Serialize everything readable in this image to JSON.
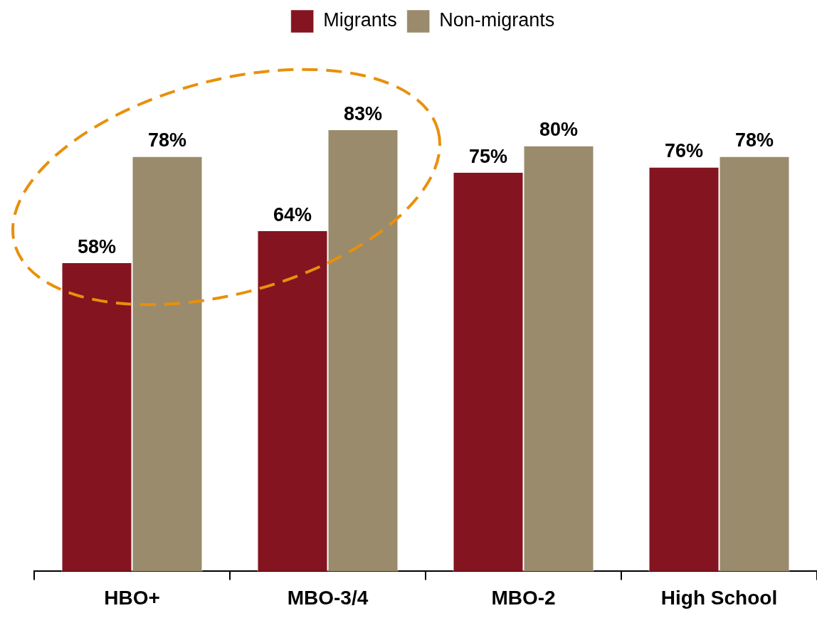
{
  "chart_data": {
    "type": "bar",
    "categories": [
      "HBO+",
      "MBO-3/4",
      "MBO-2",
      "High School"
    ],
    "series": [
      {
        "name": "Migrants",
        "color": "#84141f",
        "values": [
          58,
          64,
          75,
          76
        ],
        "value_labels": [
          "58%",
          "64%",
          "75%",
          "76%"
        ]
      },
      {
        "name": "Non-migrants",
        "color": "#9a8b6c",
        "values": [
          78,
          83,
          80,
          78
        ],
        "value_labels": [
          "78%",
          "83%",
          "80%",
          "78%"
        ]
      }
    ],
    "legend": "top",
    "grid": false,
    "relative": false
  }
}
